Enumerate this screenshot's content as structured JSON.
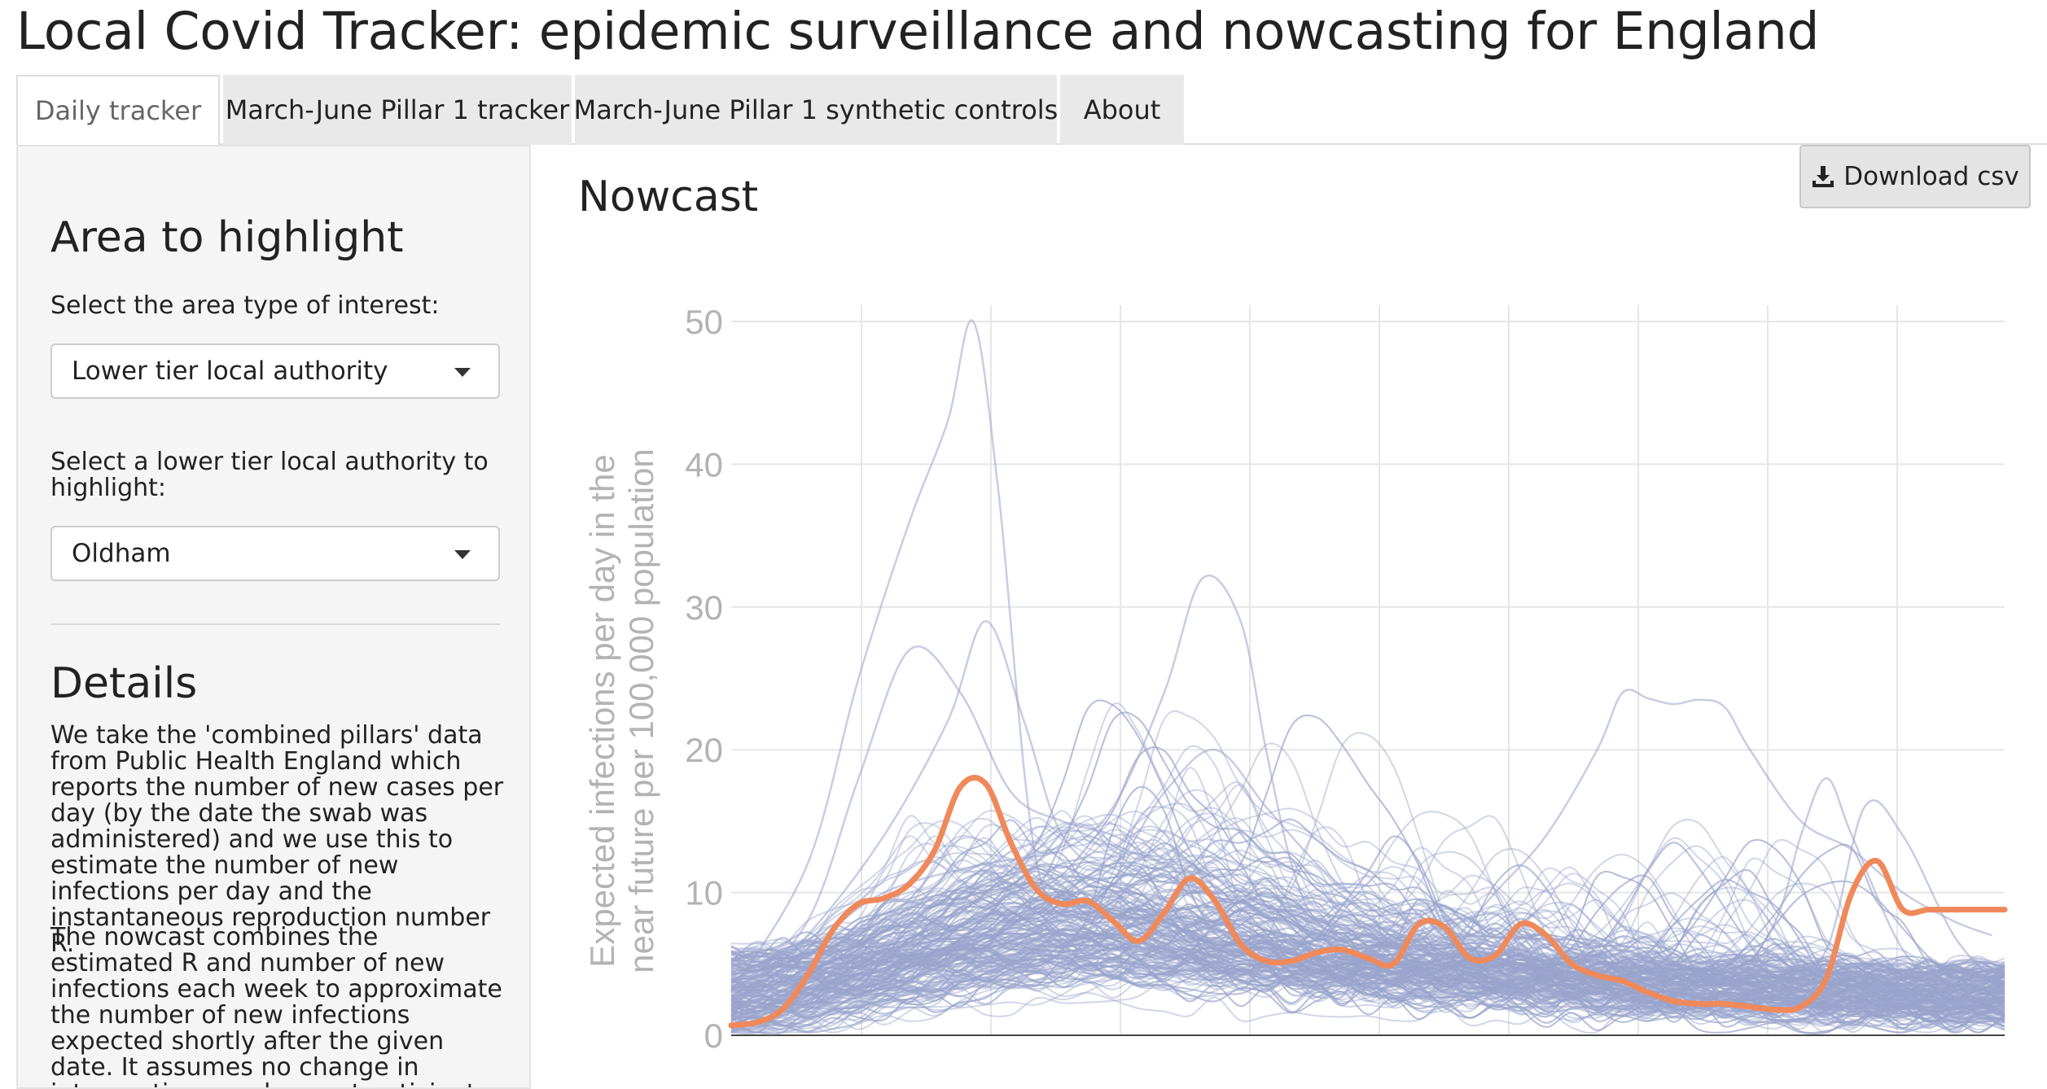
{
  "page": {
    "title": "Local Covid Tracker: epidemic surveillance and nowcasting for England"
  },
  "tabs": [
    {
      "label": "Daily tracker",
      "active": true
    },
    {
      "label": "March-June Pillar 1 tracker",
      "active": false
    },
    {
      "label": "March-June Pillar 1 synthetic controls",
      "active": false
    },
    {
      "label": "About",
      "active": false
    }
  ],
  "sidebar": {
    "heading": "Area to highlight",
    "area_type_label": "Select the area type of interest:",
    "area_type_value": "Lower tier local authority",
    "area_label": "Select a lower tier local authority to highlight:",
    "area_value": "Oldham",
    "details_heading": "Details",
    "details_p1": "We take the 'combined pillars' data from Public Health England which reports the number of new cases per day (by the date the swab was administered) and we use this to estimate the number of new infections per day and the instantaneous reproduction number R.",
    "details_p2": "The nowcast combines the estimated R and number of new infections each week to approximate the number of new infections expected shortly after the given date. It assumes no change in interventions so does not anticipate a"
  },
  "main": {
    "title": "Nowcast",
    "download_label": "Download csv",
    "download_icon": "download-icon"
  },
  "colors": {
    "highlight": "#f0895a",
    "background_lines": "#9aa3cc",
    "grid": "#e6e6e6",
    "axis_text": "#b3b3b3"
  },
  "chart_data": {
    "type": "line",
    "ylabel": "Expected infections per day in the near future per 100,000 population",
    "ylim": [
      0,
      50
    ],
    "yticks": [
      0,
      10,
      20,
      30,
      40,
      50
    ],
    "x_gridlines": 9,
    "x_range": [
      0,
      100
    ],
    "highlight_series": {
      "name": "Oldham",
      "x": [
        0,
        2,
        4,
        6,
        8,
        10,
        12,
        14,
        16,
        18,
        20,
        22,
        24,
        26,
        28,
        30,
        32,
        34,
        36,
        38,
        40,
        42,
        44,
        46,
        48,
        50,
        52,
        54,
        56,
        58,
        60,
        62,
        64,
        66,
        68,
        70,
        72,
        74,
        76,
        78,
        80,
        82,
        84,
        86,
        88,
        90,
        92,
        94,
        96,
        98,
        100
      ],
      "y": [
        0.7,
        0.9,
        1.8,
        4.2,
        7.4,
        9.2,
        9.6,
        10.6,
        13.0,
        17.4,
        17.6,
        13.4,
        10.2,
        9.2,
        9.4,
        8.0,
        6.6,
        8.6,
        11.0,
        9.4,
        6.4,
        5.2,
        5.2,
        5.8,
        6.0,
        5.4,
        5.0,
        7.8,
        7.6,
        5.4,
        5.6,
        7.8,
        7.0,
        5.0,
        4.2,
        3.8,
        3.0,
        2.4,
        2.2,
        2.2,
        2.0,
        1.8,
        2.0,
        4.0,
        10.0,
        12.2,
        8.8,
        8.8,
        8.8,
        8.8,
        8.8
      ]
    },
    "notable_series": [
      {
        "x": [
          0,
          6,
          10,
          14,
          17,
          19,
          21,
          24,
          28,
          32,
          36,
          40,
          44,
          48,
          52,
          56,
          60,
          64,
          68,
          72,
          76,
          80,
          84,
          88,
          92,
          96,
          99
        ],
        "y": [
          3,
          12,
          25,
          36,
          43,
          50,
          38,
          12,
          8,
          7,
          6,
          5,
          5,
          4,
          3,
          3,
          2,
          2,
          2,
          2,
          2,
          1,
          1,
          1,
          2,
          1,
          1
        ]
      },
      {
        "x": [
          0,
          6,
          12,
          20,
          26,
          30,
          34,
          37,
          40,
          42,
          44,
          46,
          50,
          55,
          60,
          64,
          68,
          72,
          76,
          80,
          84,
          88,
          92,
          96,
          99
        ],
        "y": [
          2,
          6,
          10,
          12,
          13,
          16,
          24,
          32,
          29,
          20,
          12,
          8,
          6,
          4,
          4,
          3,
          3,
          2,
          2,
          2,
          2,
          2,
          2,
          1,
          1
        ]
      },
      {
        "x": [
          0,
          6,
          12,
          20,
          26,
          32,
          38,
          44,
          48,
          52,
          56,
          60,
          64,
          68,
          70,
          72,
          74,
          76,
          78,
          80,
          84,
          88,
          92,
          96,
          99
        ],
        "y": [
          1,
          4,
          6,
          7,
          7,
          6,
          6,
          5,
          4,
          4,
          6,
          10,
          14,
          20,
          24,
          23.6,
          23.2,
          23.5,
          23,
          20,
          15,
          13,
          10,
          8,
          7
        ]
      },
      {
        "x": [
          0,
          6,
          10,
          14,
          18,
          22,
          26,
          30,
          34,
          38,
          42,
          46,
          50,
          54,
          58,
          62,
          66,
          70,
          74,
          78,
          82,
          84,
          86,
          88,
          92,
          96,
          99
        ],
        "y": [
          2,
          8,
          18,
          27,
          24,
          17,
          15,
          14,
          12,
          11,
          9,
          8,
          7,
          6,
          5,
          5,
          4,
          4,
          3,
          3,
          8,
          14,
          18,
          14,
          6,
          3,
          2
        ]
      },
      {
        "x": [
          0,
          6,
          12,
          17,
          20,
          23,
          26,
          30,
          34,
          38,
          42,
          46,
          50,
          54,
          58,
          62,
          66,
          70,
          74,
          78,
          82,
          86,
          89,
          92,
          96,
          99
        ],
        "y": [
          2,
          7,
          14,
          22,
          29,
          22,
          14,
          12,
          17,
          20,
          16,
          12,
          9,
          7,
          6,
          5,
          4,
          4,
          3,
          3,
          3,
          6,
          16,
          14,
          7,
          4
        ]
      }
    ]
  }
}
